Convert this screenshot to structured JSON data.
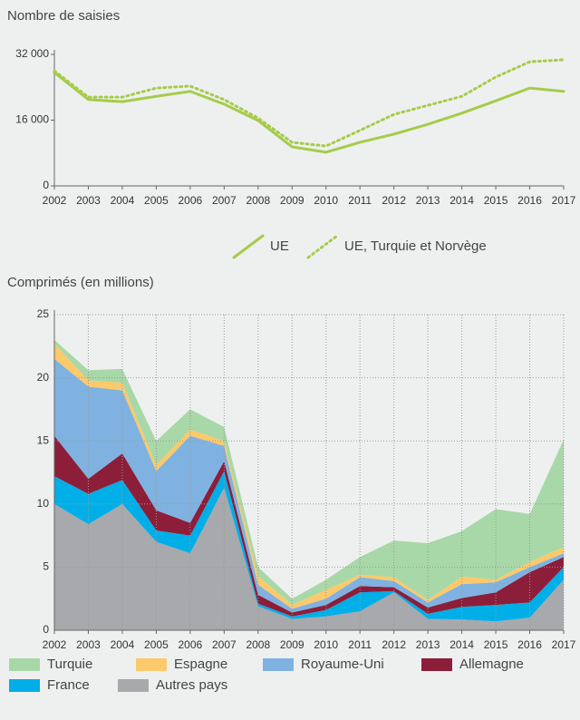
{
  "chart_data": [
    {
      "type": "line",
      "title": "Nombre de saisies",
      "categories": [
        "2002",
        "2003",
        "2004",
        "2005",
        "2006",
        "2007",
        "2008",
        "2009",
        "2010",
        "2011",
        "2012",
        "2013",
        "2014",
        "2015",
        "2016",
        "2017"
      ],
      "series": [
        {
          "name": "UE",
          "color": "#a6cc4a",
          "style": "solid",
          "values": [
            27600,
            21000,
            20500,
            21800,
            23000,
            19900,
            15900,
            9500,
            8200,
            10600,
            12600,
            15000,
            17700,
            20700,
            23800,
            23000
          ]
        },
        {
          "name": "UE, Turquie et Norvège",
          "color": "#a6cc4a",
          "style": "dotted",
          "values": [
            28000,
            21600,
            21600,
            23800,
            24300,
            21000,
            16500,
            10600,
            9700,
            13500,
            17400,
            19600,
            21800,
            26500,
            30200,
            30700
          ]
        }
      ],
      "ylim": [
        0,
        32000
      ],
      "yticks": [
        0,
        {
          "value": 16000,
          "label": "16 000"
        },
        {
          "value": 32000,
          "label": "32 000"
        }
      ]
    },
    {
      "type": "stacked_area",
      "title": "Comprimés (en millions)",
      "categories": [
        "2002",
        "2003",
        "2004",
        "2005",
        "2006",
        "2007",
        "2008",
        "2009",
        "2010",
        "2011",
        "2012",
        "2013",
        "2014",
        "2015",
        "2016",
        "2017"
      ],
      "series": [
        {
          "name": "Turquie",
          "color": "#a8d8a8",
          "values": [
            0.3,
            0.8,
            1.1,
            1.9,
            1.6,
            1.1,
            0.7,
            0.5,
            0.8,
            1.4,
            2.9,
            4.5,
            3.6,
            5.6,
            3.8,
            8.5
          ]
        },
        {
          "name": "Espagne",
          "color": "#fcc96b",
          "values": [
            1.2,
            0.5,
            0.6,
            0.5,
            0.5,
            0.4,
            0.7,
            0.3,
            0.7,
            0.2,
            0.3,
            0.2,
            0.6,
            0.2,
            0.4,
            0.5
          ]
        },
        {
          "name": "Royaume-Uni",
          "color": "#7fb2e0",
          "values": [
            6.1,
            7.3,
            5.0,
            3.1,
            6.9,
            1.2,
            0.8,
            0.3,
            0.5,
            0.7,
            0.5,
            0.4,
            1.1,
            0.8,
            0.4,
            0.3
          ]
        },
        {
          "name": "Allemagne",
          "color": "#8c1e3a",
          "values": [
            3.2,
            1.2,
            2.1,
            1.6,
            1.0,
            0.8,
            0.7,
            0.3,
            0.4,
            0.5,
            0.3,
            0.5,
            0.7,
            1.0,
            2.4,
            0.8
          ]
        },
        {
          "name": "France",
          "color": "#00aee8",
          "values": [
            2.2,
            2.4,
            1.9,
            0.9,
            1.4,
            1.3,
            0.2,
            0.2,
            0.5,
            1.5,
            0.1,
            0.4,
            1.0,
            1.3,
            1.2,
            1.0
          ]
        },
        {
          "name": "Autres pays",
          "color": "#a7a9ac",
          "values": [
            10.0,
            8.4,
            10.0,
            7.0,
            6.1,
            11.3,
            1.9,
            0.9,
            1.1,
            1.5,
            3.0,
            0.9,
            0.85,
            0.7,
            1.0,
            4.0
          ]
        }
      ],
      "ylim": [
        0,
        25
      ],
      "yticks": [
        0,
        5,
        10,
        15,
        20,
        25
      ]
    }
  ]
}
